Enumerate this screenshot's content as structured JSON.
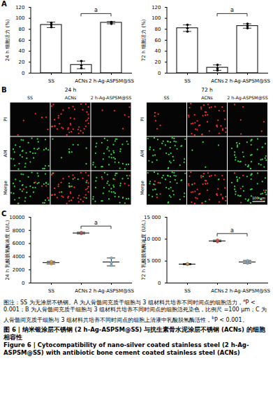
{
  "chart_data": [
    {
      "panel": "A",
      "type": "bar",
      "ylabel": "24 h 细胞活力 (%)",
      "categories": [
        "SS",
        "ACNs",
        "2 h-Ag-ASPSM@SS"
      ],
      "values": [
        88,
        15,
        92
      ],
      "errors": [
        5,
        7,
        2
      ],
      "points": [
        [
          84,
          88,
          92
        ],
        [
          9,
          14,
          22
        ],
        [
          90,
          92,
          93
        ]
      ],
      "color": "#000000",
      "ylim": [
        0,
        120
      ],
      "yticks": [
        0,
        20,
        40,
        60,
        80,
        100,
        120
      ],
      "annotations": [
        {
          "text": "a",
          "from": "ACNs",
          "to": "2 h-Ag-ASPSM@SS",
          "y": 108
        }
      ]
    },
    {
      "type": "bar",
      "ylabel": "72 h 细胞活力 (%)",
      "categories": [
        "SS",
        "ACNs",
        "2 h-Ag-ASPSM@SS"
      ],
      "values": [
        82,
        10,
        86
      ],
      "errors": [
        6,
        5,
        4
      ],
      "points": [
        [
          76,
          82,
          88
        ],
        [
          5,
          9,
          15
        ],
        [
          82,
          86,
          90
        ]
      ],
      "color": "#000000",
      "ylim": [
        0,
        120
      ],
      "yticks": [
        0,
        20,
        40,
        60,
        80,
        100,
        120
      ],
      "annotations": [
        {
          "text": "a",
          "from": "ACNs",
          "to": "2 h-Ag-ASPSM@SS",
          "y": 108
        }
      ]
    },
    {
      "panel": "C",
      "type": "scatter",
      "ylabel": "24 h 乳酸脱氢酶浓度 (U/L)",
      "categories": [
        "SS",
        "ACNs",
        "2 h-Ag-ASPSM@SS"
      ],
      "values": [
        3100,
        7600,
        3200
      ],
      "errors": [
        200,
        120,
        600
      ],
      "points": [
        [
          2900,
          3100,
          3300
        ],
        [
          7500,
          7600,
          7700
        ],
        [
          2700,
          3100,
          3800
        ]
      ],
      "colors": [
        "#e6a23c",
        "#e05050",
        "#7fb3d5"
      ],
      "ylim": [
        0,
        10000
      ],
      "yticks": [
        0,
        2000,
        4000,
        6000,
        8000,
        10000
      ],
      "annotations": [
        {
          "text": "a",
          "from": "ACNs",
          "to": "2 h-Ag-ASPSM@SS",
          "y": 8600
        }
      ]
    },
    {
      "type": "scatter",
      "ylabel": "72 h 乳酸脱氢酶浓度 (U/L)",
      "categories": [
        "SS",
        "ACNs",
        "2 h-Ag-ASPSM@SS"
      ],
      "values": [
        4300,
        9600,
        4800
      ],
      "errors": [
        150,
        200,
        350
      ],
      "points": [
        [
          4200,
          4300,
          4450
        ],
        [
          9400,
          9600,
          9800
        ],
        [
          4500,
          4800,
          5100
        ]
      ],
      "colors": [
        "#e6a23c",
        "#e05050",
        "#7fb3d5"
      ],
      "ylim": [
        0,
        15000
      ],
      "yticks": [
        0,
        {
          "value": 5000,
          "label": "5 000"
        },
        {
          "value": 10000,
          "label": "10 000"
        },
        {
          "value": 15000,
          "label": "15 000"
        }
      ],
      "annotations": [
        {
          "text": "a",
          "from": "ACNs",
          "to": "2 h-Ag-ASPSM@SS",
          "y": 11200
        }
      ]
    }
  ],
  "panel_b": {
    "panel": "B",
    "times": [
      "24 h",
      "72 h"
    ],
    "groups": [
      "SS",
      "ACNs",
      "2 h-Ag-ASPSM@SS"
    ],
    "stains": [
      "PI",
      "AM",
      "Merge"
    ],
    "scale_bar": "100 μm"
  },
  "caption": {
    "note": [
      "图注：SS 为无涂层不锈钢。A 为人骨髓间充质干细胞与 3 组材料共培养不同时间点的细胞活力，",
      {
        "sup": "a"
      },
      "P < 0.001；B 为人骨髓间充质干细胞与 3 组材料共培养不同时间点的细胞活死染色，比例尺 =100 μm；C 为人骨髓间充质干细胞与 3 组材料共培养不同时间点的细胞上清液中乳酸脱氢酶活性，",
      {
        "sup": "b"
      },
      "P < 0.001。"
    ],
    "title_cn": "图 6 | 纳米银涂层不锈钢 (2 h-Ag-ASPSM@SS) 与抗生素骨水泥涂层不锈钢 (ACNs) 的细胞相容性",
    "title_en": "Figure 6 | Cytocompatibility of nano-silver coated stainless steel (2 h-Ag-ASPSM@SS) with antibiotic bone cement coated stainless steel (ACNs)"
  }
}
